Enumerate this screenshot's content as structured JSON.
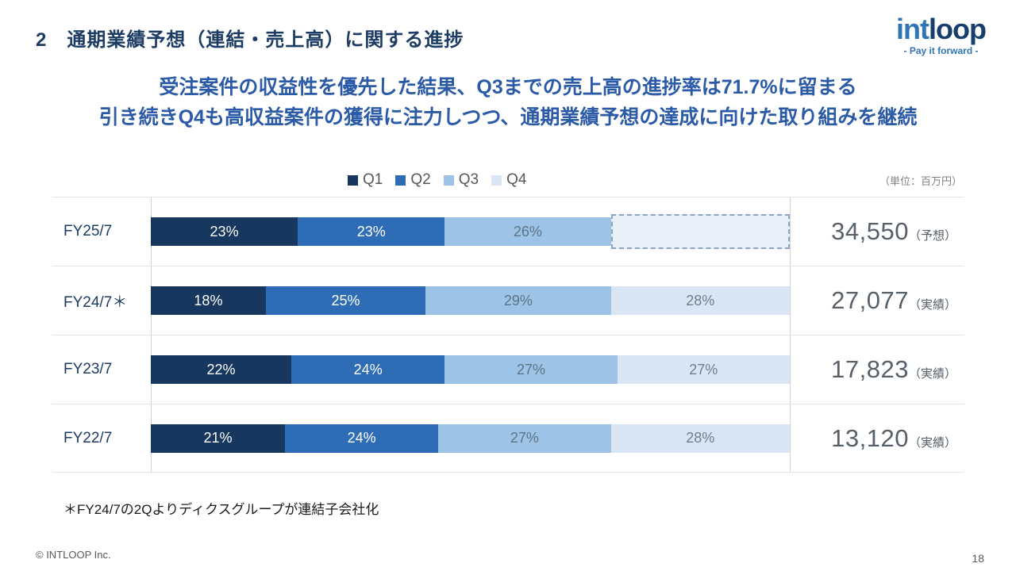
{
  "header": {
    "title": "2　通期業績予想（連結・売上高）に関する進捗",
    "logo": {
      "part1": "int",
      "part2": "loop",
      "tagline": "- Pay it forward -"
    }
  },
  "headline": {
    "line1": "受注案件の収益性を優先した結果、Q3までの売上高の進捗率は71.7%に留まる",
    "line2": "引き続きQ4も高収益案件の獲得に注力しつつ、通期業績予想の達成に向けた取り組みを継続"
  },
  "unit_note": "（単位：百万円）",
  "chart_data": {
    "type": "bar",
    "orientation": "horizontal-stacked",
    "title": "通期業績予想（連結・売上高）に関する進捗",
    "legend": [
      "Q1",
      "Q2",
      "Q3",
      "Q4"
    ],
    "legend_position": "top-center",
    "colors": [
      "#17375e",
      "#2e6db5",
      "#9dc3e6",
      "#dae6f3"
    ],
    "label_colors": [
      "#ffffff",
      "#ffffff",
      "#5d7488",
      "#6e7e8f"
    ],
    "planned_fill": "#e9f0f8",
    "planned_border": "#8ca5c5",
    "x_range_percent": [
      0,
      100
    ],
    "rows": [
      {
        "label": "FY25/7",
        "values": [
          23,
          23,
          26
        ],
        "planned": 28,
        "total": "34,550",
        "total_note": "（予想）"
      },
      {
        "label": "FY24/7＊",
        "values": [
          18,
          25,
          29,
          28
        ],
        "planned": null,
        "total": "27,077",
        "total_note": "（実績）"
      },
      {
        "label": "FY23/7",
        "values": [
          22,
          24,
          27,
          27
        ],
        "planned": null,
        "total": "17,823",
        "total_note": "（実績）"
      },
      {
        "label": "FY22/7",
        "values": [
          21,
          24,
          27,
          28
        ],
        "planned": null,
        "total": "13,120",
        "total_note": "（実績）"
      }
    ]
  },
  "footnote": "＊FY24/7の2Qよりディクスグループが連結子会社化",
  "footer": {
    "copyright": "© INTLOOP  Inc.",
    "page": "18"
  }
}
